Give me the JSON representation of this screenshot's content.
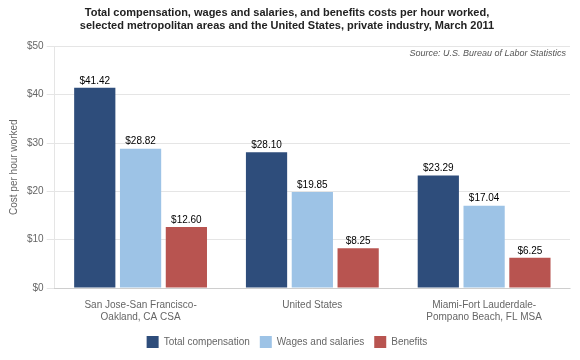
{
  "chart_data": {
    "type": "bar",
    "title": "Total compensation, wages and salaries, and benefits costs per hour worked,\nselected metropolitan areas and the United States, private industry, March 2011",
    "categories": [
      "San Jose-San Francisco-\nOakland, CA CSA",
      "United States",
      "Miami-Fort Lauderdale-\nPompano Beach, FL MSA"
    ],
    "series": [
      {
        "name": "Total compensation",
        "color": "#2E4D7B",
        "values": [
          41.42,
          28.1,
          23.29
        ],
        "value_labels": [
          "$41.42",
          "$28.10",
          "$23.29"
        ]
      },
      {
        "name": "Wages and salaries",
        "color": "#9DC3E6",
        "values": [
          28.82,
          19.85,
          17.04
        ],
        "value_labels": [
          "$28.82",
          "$19.85",
          "$17.04"
        ]
      },
      {
        "name": "Benefits",
        "color": "#B85450",
        "values": [
          12.6,
          8.25,
          6.25
        ],
        "value_labels": [
          "$12.60",
          "$8.25",
          "$6.25"
        ]
      }
    ],
    "ylabel": "Cost per hour worked",
    "ylim": [
      0,
      50
    ],
    "yticks": [
      {
        "value": 0,
        "label": "$0"
      },
      {
        "value": 10,
        "label": "$10"
      },
      {
        "value": 20,
        "label": "$20"
      },
      {
        "value": 30,
        "label": "$30"
      },
      {
        "value": 40,
        "label": "$40"
      },
      {
        "value": 50,
        "label": "$50"
      }
    ],
    "annotations": [
      "Source: U.S. Bureau of Labor Statistics"
    ],
    "grid": true,
    "legend": "bottom",
    "data_labels": true
  }
}
